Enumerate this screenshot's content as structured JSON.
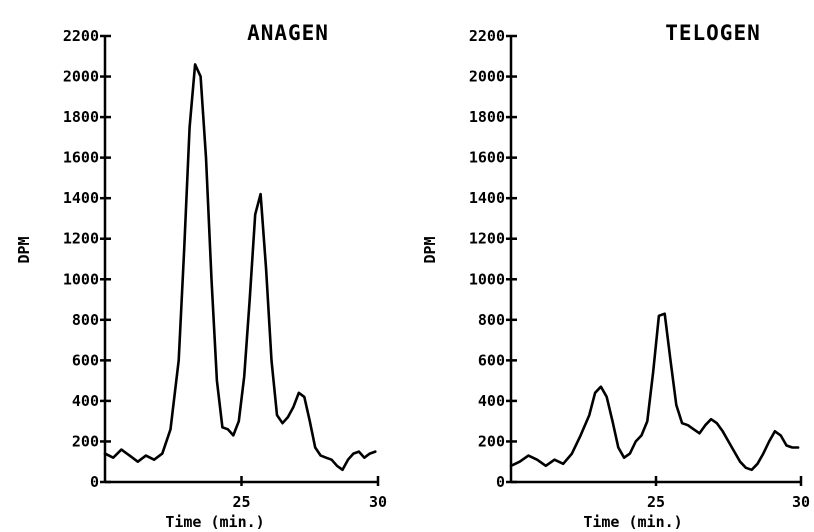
{
  "chart_data": [
    {
      "type": "line",
      "title": "ANAGEN",
      "xlabel": "Time (min.)",
      "ylabel": "DPM",
      "xlim": [
        20,
        30
      ],
      "ylim": [
        0,
        2200
      ],
      "x_ticks": [
        25,
        30
      ],
      "x_tick_labels": [
        "25",
        "30"
      ],
      "y_ticks": [
        0,
        200,
        400,
        600,
        800,
        1000,
        1200,
        1400,
        1600,
        1800,
        2000,
        2200
      ],
      "y_tick_labels": [
        "0",
        "200",
        "400",
        "600",
        "800",
        "1000",
        "1200",
        "1400",
        "1600",
        "1800",
        "2000",
        "2200"
      ],
      "series": [
        {
          "x": [
            20.0,
            20.3,
            20.6,
            20.9,
            21.2,
            21.5,
            21.8,
            22.1,
            22.4,
            22.7,
            22.9,
            23.1,
            23.3,
            23.5,
            23.7,
            23.9,
            24.1,
            24.3,
            24.5,
            24.7,
            24.9,
            25.1,
            25.3,
            25.5,
            25.7,
            25.9,
            26.1,
            26.3,
            26.5,
            26.7,
            26.9,
            27.1,
            27.3,
            27.5,
            27.7,
            27.9,
            28.1,
            28.3,
            28.5,
            28.7,
            28.9,
            29.1,
            29.3,
            29.5,
            29.7,
            29.9
          ],
          "y": [
            140,
            120,
            160,
            130,
            100,
            130,
            110,
            140,
            260,
            600,
            1150,
            1750,
            2060,
            2000,
            1600,
            1000,
            500,
            270,
            260,
            230,
            300,
            520,
            900,
            1320,
            1420,
            1050,
            600,
            330,
            290,
            320,
            370,
            440,
            420,
            300,
            170,
            130,
            120,
            110,
            80,
            60,
            110,
            140,
            150,
            120,
            140,
            150
          ]
        }
      ]
    },
    {
      "type": "line",
      "title": "TELOGEN",
      "xlabel": "Time (min.)",
      "ylabel": "DPM",
      "xlim": [
        20,
        30
      ],
      "ylim": [
        0,
        2200
      ],
      "x_ticks": [
        25,
        30
      ],
      "x_tick_labels": [
        "25",
        "30"
      ],
      "y_ticks": [
        0,
        200,
        400,
        600,
        800,
        1000,
        1200,
        1400,
        1600,
        1800,
        2000,
        2200
      ],
      "y_tick_labels": [
        "0",
        "200",
        "400",
        "600",
        "800",
        "1000",
        "1200",
        "1400",
        "1600",
        "1800",
        "2000",
        "2200"
      ],
      "series": [
        {
          "x": [
            20.0,
            20.3,
            20.6,
            20.9,
            21.2,
            21.5,
            21.8,
            22.1,
            22.4,
            22.7,
            22.9,
            23.1,
            23.3,
            23.5,
            23.7,
            23.9,
            24.1,
            24.3,
            24.5,
            24.7,
            24.9,
            25.1,
            25.3,
            25.5,
            25.7,
            25.9,
            26.1,
            26.3,
            26.5,
            26.7,
            26.9,
            27.1,
            27.3,
            27.5,
            27.7,
            27.9,
            28.1,
            28.3,
            28.5,
            28.7,
            28.9,
            29.1,
            29.3,
            29.5,
            29.7,
            29.9
          ],
          "y": [
            80,
            100,
            130,
            110,
            80,
            110,
            90,
            140,
            230,
            330,
            440,
            470,
            420,
            300,
            170,
            120,
            140,
            200,
            230,
            300,
            540,
            820,
            830,
            600,
            380,
            290,
            280,
            260,
            240,
            280,
            310,
            290,
            250,
            200,
            150,
            100,
            70,
            60,
            90,
            140,
            200,
            250,
            230,
            180,
            170,
            170
          ]
        }
      ]
    }
  ]
}
